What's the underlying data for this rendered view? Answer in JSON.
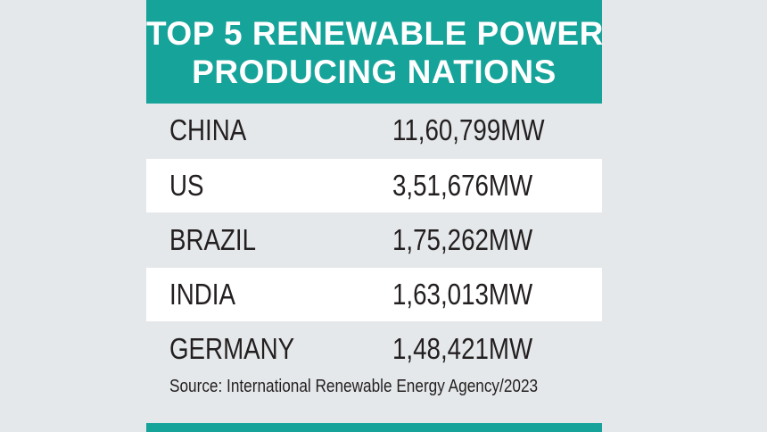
{
  "colors": {
    "accent": "#16a39a",
    "background": "#e5e8ea",
    "row_alt": "#ffffff",
    "text": "#231f20"
  },
  "chart_data": {
    "type": "table",
    "title_lines": [
      "TOP 5 RENEWABLE POWER",
      "PRODUCING NATIONS"
    ],
    "rows": [
      {
        "country": "CHINA",
        "value": 1160799,
        "display": "11,60,799MW"
      },
      {
        "country": "US",
        "value": 351676,
        "display": "3,51,676MW"
      },
      {
        "country": "BRAZIL",
        "value": 175262,
        "display": "1,75,262MW"
      },
      {
        "country": "INDIA",
        "value": 163013,
        "display": "1,63,013MW"
      },
      {
        "country": "GERMANY",
        "value": 148421,
        "display": "1,48,421MW"
      }
    ],
    "unit": "MW",
    "source": "Source: International Renewable Energy Agency/2023"
  }
}
